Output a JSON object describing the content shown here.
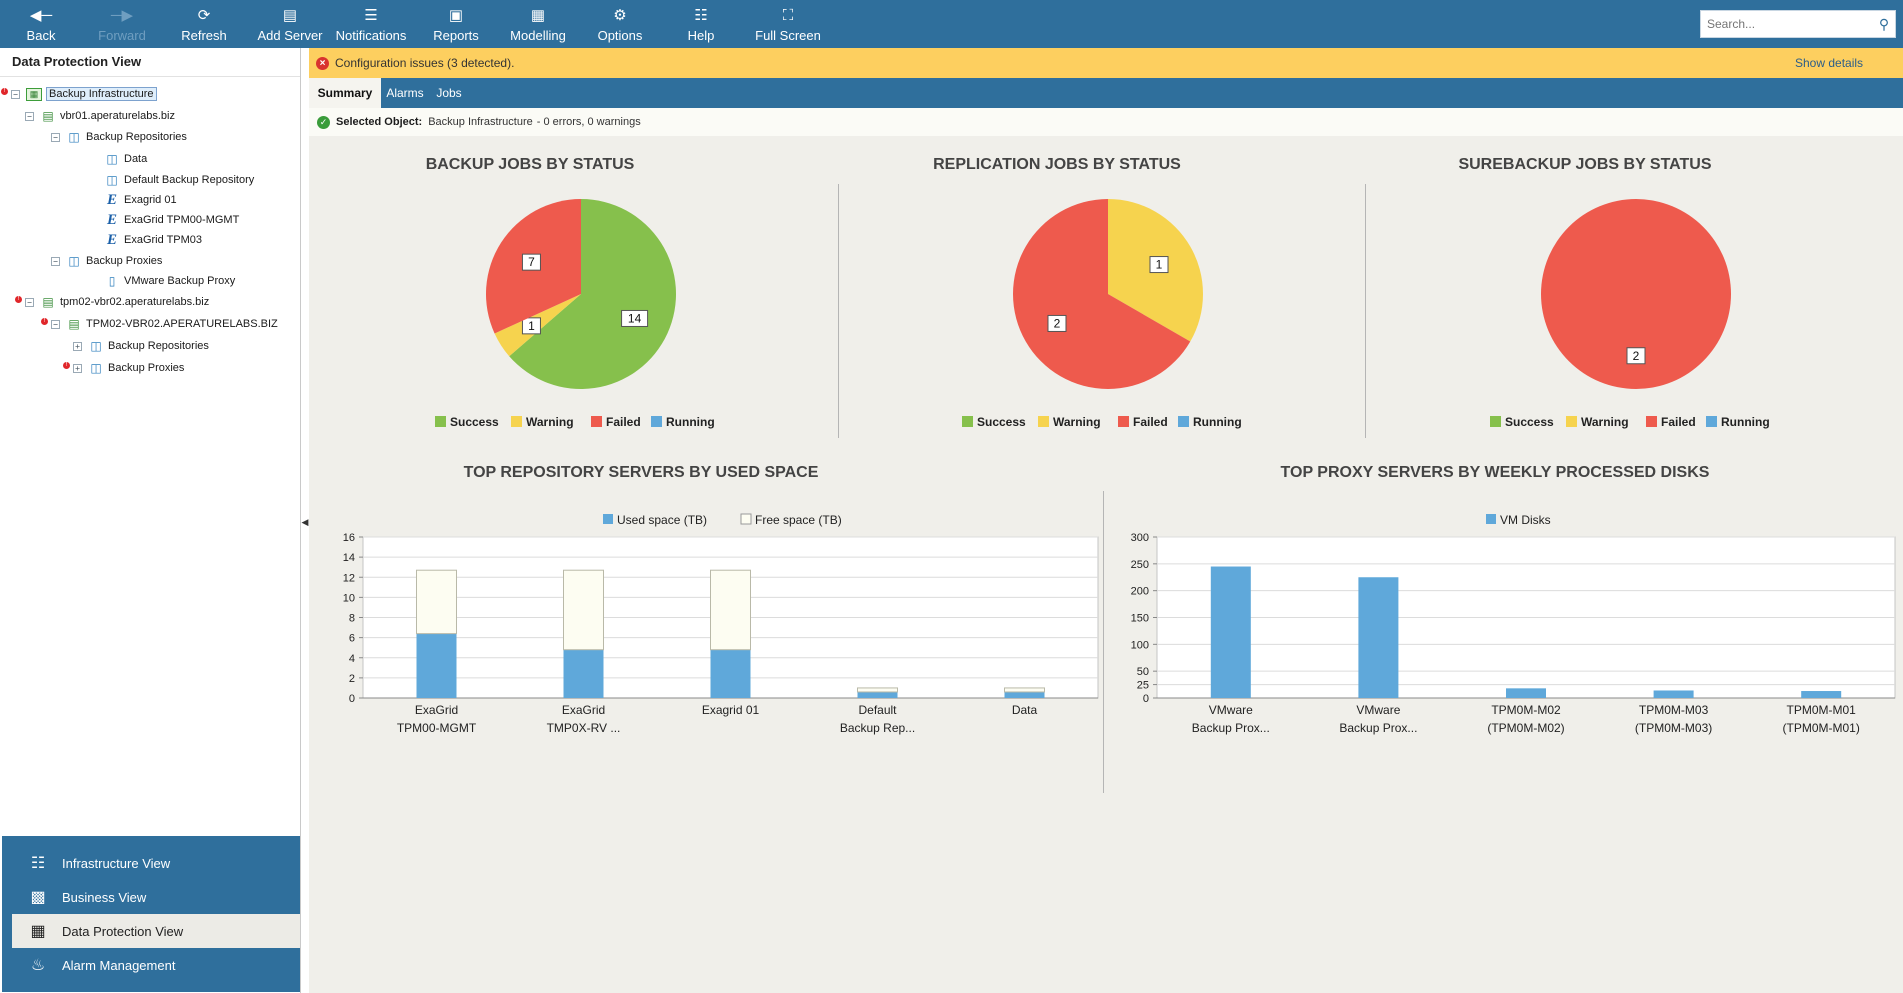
{
  "toolbar": {
    "items": [
      {
        "label": "Back",
        "icon": "arrow-left-icon"
      },
      {
        "label": "Forward",
        "icon": "arrow-right-icon"
      },
      {
        "label": "Refresh",
        "icon": "refresh-icon"
      },
      {
        "label": "Add Server",
        "icon": "add-server-icon"
      },
      {
        "label": "Notifications",
        "icon": "list-icon"
      },
      {
        "label": "Reports",
        "icon": "document-icon"
      },
      {
        "label": "Modelling",
        "icon": "image-icon"
      },
      {
        "label": "Options",
        "icon": "wrench-icon"
      },
      {
        "label": "Help",
        "icon": "book-icon"
      },
      {
        "label": "Full Screen",
        "icon": "fullscreen-icon"
      }
    ],
    "search_placeholder": "Search..."
  },
  "left_panel": {
    "title": "Data Protection View",
    "tree": [
      {
        "label": "Backup Infrastructure",
        "icon": "infrastructure-icon",
        "error": true,
        "toggle": "−",
        "selected": true
      },
      {
        "label": "vbr01.aperaturelabs.biz",
        "icon": "server-error-icon",
        "error": false,
        "toggle": "−"
      },
      {
        "label": "Backup Repositories",
        "icon": "repository-icon",
        "error": false,
        "toggle": "−"
      },
      {
        "label": "Data",
        "icon": "repository-icon",
        "error": false,
        "toggle": ""
      },
      {
        "label": "Default Backup Repository",
        "icon": "repository-icon",
        "error": false,
        "toggle": ""
      },
      {
        "label": "Exagrid 01",
        "icon": "exagrid-icon",
        "error": false,
        "toggle": ""
      },
      {
        "label": "ExaGrid TPM00-MGMT",
        "icon": "exagrid-icon",
        "error": false,
        "toggle": ""
      },
      {
        "label": "ExaGrid TPM03",
        "icon": "exagrid-icon",
        "error": false,
        "toggle": ""
      },
      {
        "label": "Backup Proxies",
        "icon": "proxies-icon",
        "error": false,
        "toggle": "−"
      },
      {
        "label": "VMware Backup Proxy",
        "icon": "proxy-icon",
        "error": false,
        "toggle": ""
      },
      {
        "label": "tpm02-vbr02.aperaturelabs.biz",
        "icon": "server-icon",
        "error": true,
        "toggle": "−"
      },
      {
        "label": "TPM02-VBR02.APERATURELABS.BIZ",
        "icon": "server-error-icon",
        "error": true,
        "toggle": "−"
      },
      {
        "label": "Backup Repositories",
        "icon": "repository-icon",
        "error": false,
        "toggle": "+"
      },
      {
        "label": "Backup Proxies",
        "icon": "proxies-icon",
        "error": true,
        "toggle": "+"
      }
    ]
  },
  "bottom_nav": [
    {
      "label": "Infrastructure View",
      "icon": "infrastructure-view-icon",
      "active": false
    },
    {
      "label": "Business View",
      "icon": "briefcase-icon",
      "active": false
    },
    {
      "label": "Data Protection View",
      "icon": "data-protection-icon",
      "active": true
    },
    {
      "label": "Alarm Management",
      "icon": "bell-icon",
      "active": false
    }
  ],
  "warning": {
    "text": "Configuration issues (3 detected).",
    "link": "Show details"
  },
  "tabs": [
    "Summary",
    "Alarms",
    "Jobs"
  ],
  "selected": {
    "label": "Selected Object:",
    "value": "Backup Infrastructure",
    "status": "- 0 errors, 0 warnings"
  },
  "colors": {
    "success": "#86c04c",
    "warning": "#f6d34e",
    "failed": "#ee5a4d",
    "running": "#5fa8da",
    "free": "#fdfdf2"
  },
  "chart_data": [
    {
      "type": "pie",
      "title": "BACKUP JOBS BY STATUS",
      "legend": [
        "Success",
        "Warning",
        "Failed",
        "Running"
      ],
      "values": [
        14,
        1,
        7,
        0
      ]
    },
    {
      "type": "pie",
      "title": "REPLICATION JOBS BY STATUS",
      "legend": [
        "Success",
        "Warning",
        "Failed",
        "Running"
      ],
      "values": [
        0,
        1,
        2,
        0
      ]
    },
    {
      "type": "pie",
      "title": "SUREBACKUP JOBS BY STATUS",
      "legend": [
        "Success",
        "Warning",
        "Failed",
        "Running"
      ],
      "values": [
        0,
        0,
        2,
        0
      ]
    },
    {
      "type": "bar",
      "stacked": true,
      "title": "TOP REPOSITORY SERVERS BY USED SPACE",
      "categories": [
        [
          "ExaGrid",
          "TPM00-MGMT"
        ],
        [
          "ExaGrid",
          "TMP0X-RV ..."
        ],
        [
          "Exagrid 01"
        ],
        [
          "Default",
          "Backup Rep..."
        ],
        [
          "Data"
        ]
      ],
      "series": [
        {
          "name": "Used space (TB)",
          "values": [
            6.4,
            4.8,
            4.8,
            0.6,
            0.6
          ]
        },
        {
          "name": "Free space (TB)",
          "values": [
            6.3,
            7.9,
            7.9,
            0.4,
            0.4
          ]
        }
      ],
      "ylim": [
        0,
        16
      ],
      "yticks": [
        0,
        2,
        4,
        6,
        8,
        10,
        12,
        14,
        16
      ],
      "legend_position": "top"
    },
    {
      "type": "bar",
      "title": "TOP PROXY SERVERS BY WEEKLY PROCESSED DISKS",
      "categories": [
        [
          "VMware",
          "Backup Prox..."
        ],
        [
          "VMware",
          "Backup Prox..."
        ],
        [
          "TPM0M-M02",
          "(TPM0M-M02)"
        ],
        [
          "TPM0M-M03",
          "(TPM0M-M03)"
        ],
        [
          "TPM0M-M01",
          "(TPM0M-M01)"
        ]
      ],
      "series": [
        {
          "name": "VM Disks",
          "values": [
            245,
            225,
            18,
            14,
            13
          ]
        }
      ],
      "ylim": [
        0,
        300
      ],
      "yticks": [
        0,
        25,
        50,
        100,
        150,
        200,
        250,
        300
      ],
      "legend_position": "top"
    }
  ]
}
